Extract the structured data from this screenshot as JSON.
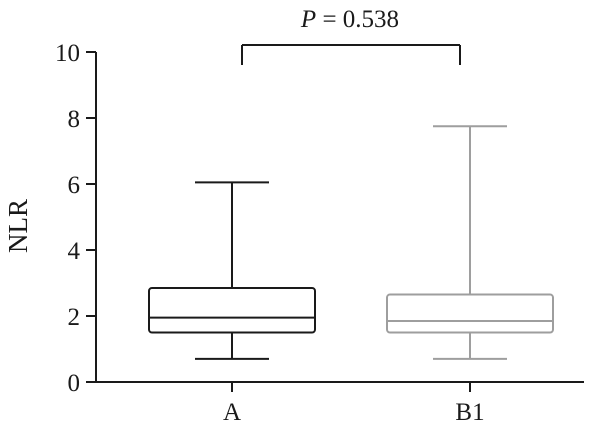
{
  "chart_data": {
    "type": "box",
    "categories": [
      "A",
      "B1"
    ],
    "series": [
      {
        "category": "A",
        "min": 0.7,
        "q1": 1.5,
        "median": 1.95,
        "q3": 2.85,
        "max": 6.05,
        "color": "#1a1a1a"
      },
      {
        "category": "B1",
        "min": 0.7,
        "q1": 1.5,
        "median": 1.85,
        "q3": 2.65,
        "max": 7.75,
        "color": "#9e9e9e"
      }
    ],
    "ylabel": "NLR",
    "xlabel": "",
    "ylim": [
      0,
      10
    ],
    "yticks": [
      0,
      2,
      4,
      6,
      8,
      10
    ],
    "annotation": {
      "prefix": "P",
      "suffix": " = 0.538",
      "between": [
        "A",
        "B1"
      ],
      "y": 10
    }
  }
}
